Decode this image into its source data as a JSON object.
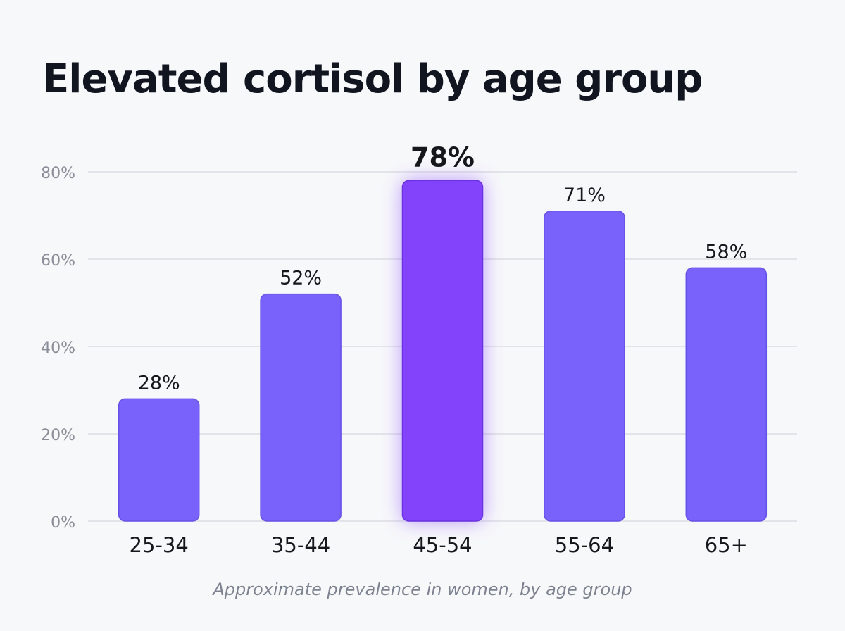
{
  "chart_data": {
    "type": "bar",
    "title": "Elevated cortisol by age group",
    "subtitle": "Approximate prevalence in women, by age group",
    "categories": [
      "25-34",
      "35-44",
      "45-54",
      "55-64",
      "65+"
    ],
    "values": [
      28,
      52,
      78,
      71,
      58
    ],
    "value_labels": [
      "28%",
      "52%",
      "78%",
      "71%",
      "58%"
    ],
    "highlight_category": "45-54",
    "yticks": [
      0,
      20,
      40,
      60,
      80
    ],
    "ytick_labels": [
      "0%",
      "20%",
      "40%",
      "60%",
      "80%"
    ],
    "ylim": [
      0,
      80
    ],
    "xlabel": "",
    "ylabel": "",
    "grid": true,
    "legend": "none",
    "colors": {
      "bar": "#7862fb",
      "bar_highlight": "#8243fb",
      "grid": "#dcdde3",
      "tick_label": "#8a8e99",
      "category_label": "#15171c",
      "value_label": "#15171c",
      "title": "#111520",
      "caption": "#7d8291",
      "background": "#f7f8fa"
    }
  }
}
